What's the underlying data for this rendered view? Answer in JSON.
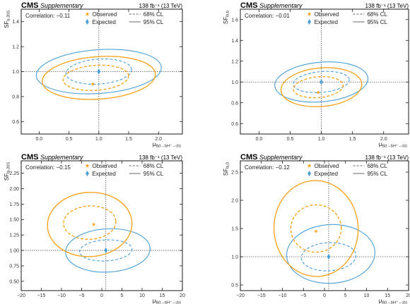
{
  "colors": {
    "observed": "#f5a623",
    "expected": "#4a9fd6",
    "frame": "#000000",
    "refline": "#555555"
  },
  "header": {
    "experiment": "CMS",
    "label": "Supplementary",
    "lumi": "138 fb⁻¹ (13 TeV)"
  },
  "legend": {
    "observed": "Observed",
    "expected": "Expected",
    "cl68": "68% CL",
    "cl95": "95% CL",
    "position": "top"
  },
  "chart_data": [
    {
      "type": "scatter",
      "correlation": "Correlation: −0.11",
      "xlabel_main": "μ",
      "xlabel_sub": "B(t→bH⁺→cb)",
      "ylabel_main": "SF",
      "ylabel_sub": "b-20S",
      "xlim": [
        -0.3,
        2.4
      ],
      "ylim": [
        0.5,
        1.5
      ],
      "xticks": [
        0.0,
        0.5,
        1.0,
        1.5,
        2.0
      ],
      "xtick_labels": [
        "0.0",
        "0.5",
        "1.0",
        "1.5",
        "2.0"
      ],
      "yticks": [
        0.6,
        0.8,
        1.0,
        1.2,
        1.4
      ],
      "ytick_labels": [
        "0.6",
        "0.8",
        "1.0",
        "1.2",
        "1.4"
      ],
      "reference": {
        "x": 1.0,
        "y": 1.0
      },
      "observed": {
        "x": 0.9,
        "y": 0.9
      },
      "expected": {
        "x": 1.0,
        "y": 1.0
      },
      "contours": [
        {
          "kind": "expected",
          "cl": 68,
          "cx": 1.0,
          "cy": 1.0,
          "rx": 0.55,
          "ry": 0.1,
          "angle": -4
        },
        {
          "kind": "expected",
          "cl": 95,
          "cx": 1.0,
          "cy": 1.0,
          "rx": 1.05,
          "ry": 0.175,
          "angle": -4
        },
        {
          "kind": "observed",
          "cl": 68,
          "cx": 0.95,
          "cy": 0.95,
          "rx": 0.55,
          "ry": 0.1,
          "angle": -4
        },
        {
          "kind": "observed",
          "cl": 95,
          "cx": 1.0,
          "cy": 0.95,
          "rx": 0.95,
          "ry": 0.17,
          "angle": -4
        }
      ]
    },
    {
      "type": "scatter",
      "correlation": "Correlation: −0.01",
      "xlabel_main": "μ",
      "xlabel_sub": "B(t→bH⁺→cb)",
      "ylabel_main": "SF",
      "ylabel_sub": "lb,b",
      "xlim": [
        -0.3,
        2.4
      ],
      "ylim": [
        0.5,
        1.7
      ],
      "xticks": [
        0.0,
        0.5,
        1.0,
        1.5,
        2.0
      ],
      "xtick_labels": [
        "0.0",
        "0.5",
        "1.0",
        "1.5",
        "2.0"
      ],
      "yticks": [
        0.6,
        0.8,
        1.0,
        1.2,
        1.4,
        1.6
      ],
      "ytick_labels": [
        "0.6",
        "0.8",
        "1.0",
        "1.2",
        "1.4",
        "1.6"
      ],
      "reference": {
        "x": 1.0,
        "y": 1.0
      },
      "observed": {
        "x": 0.95,
        "y": 0.9
      },
      "expected": {
        "x": 1.0,
        "y": 1.0
      },
      "contours": [
        {
          "kind": "expected",
          "cl": 68,
          "cx": 1.0,
          "cy": 1.0,
          "rx": 0.45,
          "ry": 0.1,
          "angle": -5
        },
        {
          "kind": "expected",
          "cl": 95,
          "cx": 1.0,
          "cy": 1.0,
          "rx": 0.75,
          "ry": 0.19,
          "angle": -5
        },
        {
          "kind": "observed",
          "cl": 68,
          "cx": 0.95,
          "cy": 0.95,
          "rx": 0.4,
          "ry": 0.1,
          "angle": -5
        },
        {
          "kind": "observed",
          "cl": 95,
          "cx": 1.0,
          "cy": 0.95,
          "rx": 0.65,
          "ry": 0.185,
          "angle": -5
        }
      ]
    },
    {
      "type": "scatter",
      "correlation": "Correlation: −0.15",
      "xlabel_main": "μ",
      "xlabel_sub": "B(t→bH⁺→cb)",
      "ylabel_main": "SF",
      "ylabel_sub": "lb-20S",
      "xlim": [
        -20,
        20
      ],
      "ylim": [
        0.35,
        2.45
      ],
      "xticks": [
        -20,
        -15,
        -10,
        -5,
        0,
        5,
        10,
        15,
        20
      ],
      "xtick_labels": [
        "−20",
        "−15",
        "−10",
        "−5",
        "0",
        "5",
        "10",
        "15",
        "20"
      ],
      "yticks": [
        0.5,
        0.75,
        1.0,
        1.25,
        1.5,
        1.75,
        2.0,
        2.25
      ],
      "ytick_labels": [
        "0.50",
        "0.75",
        "1.00",
        "1.25",
        "1.50",
        "1.75",
        "2.00",
        "2.25"
      ],
      "reference": {
        "x": 1.0,
        "y": 1.0
      },
      "observed": {
        "x": -2.0,
        "y": 1.42
      },
      "expected": {
        "x": 1.0,
        "y": 1.0
      },
      "contours": [
        {
          "kind": "expected",
          "cl": 68,
          "cx": 1.0,
          "cy": 1.0,
          "rx": 6.5,
          "ry": 0.17,
          "angle": -3
        },
        {
          "kind": "expected",
          "cl": 95,
          "cx": 1.5,
          "cy": 1.0,
          "rx": 10.5,
          "ry": 0.35,
          "angle": -3
        },
        {
          "kind": "observed",
          "cl": 68,
          "cx": -3.0,
          "cy": 1.45,
          "rx": 6.5,
          "ry": 0.27,
          "angle": -3
        },
        {
          "kind": "observed",
          "cl": 95,
          "cx": -3.0,
          "cy": 1.42,
          "rx": 10.5,
          "ry": 0.52,
          "angle": -3
        }
      ]
    },
    {
      "type": "scatter",
      "correlation": "Correlation: −0.12",
      "xlabel_main": "μ",
      "xlabel_sub": "B(t→bH⁺→cb)",
      "ylabel_main": "SF",
      "ylabel_sub": "lb,0",
      "xlim": [
        -20,
        20
      ],
      "ylim": [
        0.4,
        2.7
      ],
      "xticks": [
        -20,
        -15,
        -10,
        -5,
        0,
        5,
        10,
        15,
        20
      ],
      "xtick_labels": [
        "−20",
        "−15",
        "−10",
        "−5",
        "0",
        "5",
        "10",
        "15",
        "20"
      ],
      "yticks": [
        0.5,
        1.0,
        1.5,
        2.0,
        2.5
      ],
      "ytick_labels": [
        "0.5",
        "1.0",
        "1.5",
        "2.0",
        "2.5"
      ],
      "reference": {
        "x": 1.0,
        "y": 1.0
      },
      "observed": {
        "x": -2.0,
        "y": 1.45
      },
      "expected": {
        "x": 1.0,
        "y": 1.0
      },
      "contours": [
        {
          "kind": "expected",
          "cl": 68,
          "cx": 1.0,
          "cy": 1.0,
          "rx": 6.5,
          "ry": 0.25,
          "angle": -3
        },
        {
          "kind": "expected",
          "cl": 95,
          "cx": 1.5,
          "cy": 1.05,
          "rx": 10.5,
          "ry": 0.52,
          "angle": -3
        },
        {
          "kind": "observed",
          "cl": 68,
          "cx": -2.0,
          "cy": 1.5,
          "rx": 6.0,
          "ry": 0.42,
          "angle": -3
        },
        {
          "kind": "observed",
          "cl": 95,
          "cx": -2.0,
          "cy": 1.5,
          "rx": 10.0,
          "ry": 0.85,
          "angle": -3
        }
      ]
    }
  ]
}
